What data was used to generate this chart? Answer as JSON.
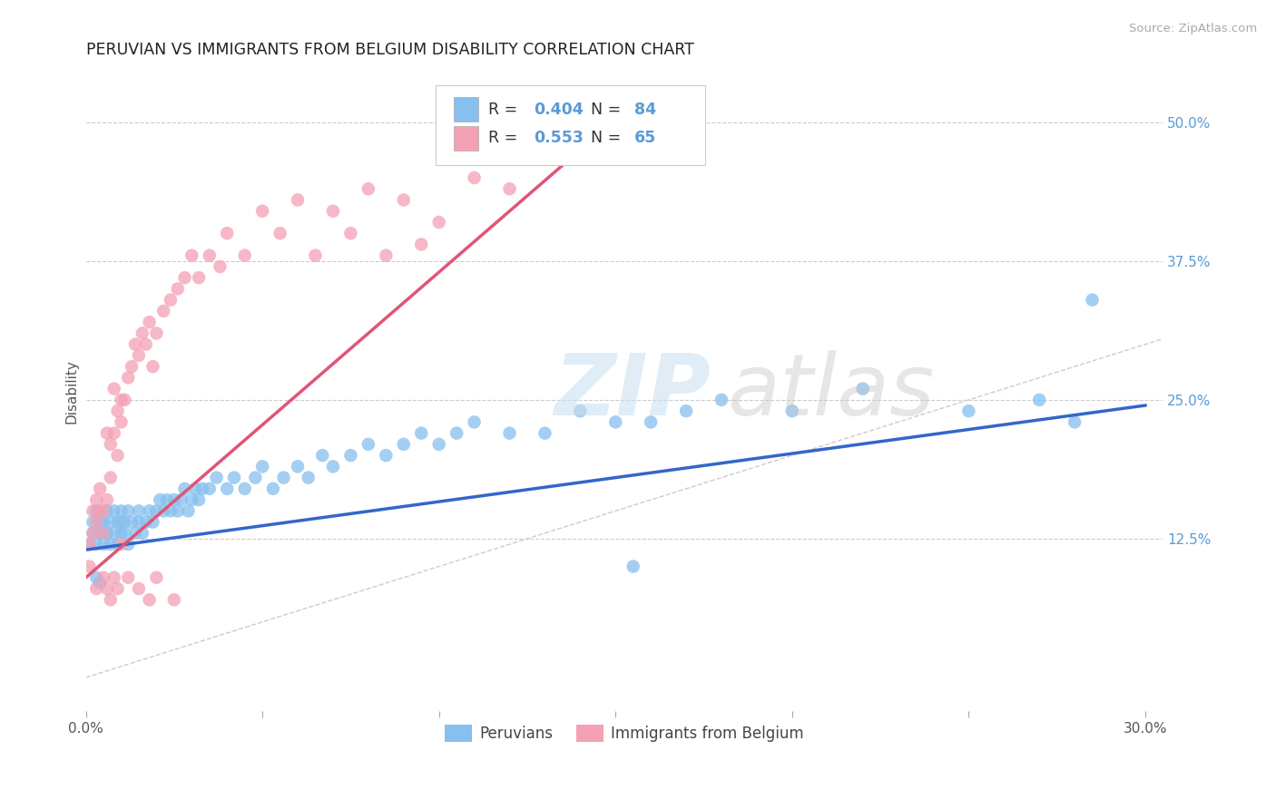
{
  "title": "PERUVIAN VS IMMIGRANTS FROM BELGIUM DISABILITY CORRELATION CHART",
  "source": "Source: ZipAtlas.com",
  "ylabel": "Disability",
  "xlim": [
    0.0,
    0.305
  ],
  "ylim": [
    -0.03,
    0.545
  ],
  "grid_color": "#cccccc",
  "background_color": "#ffffff",
  "peruvians_color": "#87BFEE",
  "belgium_color": "#F4A0B5",
  "peruvians_R": 0.404,
  "peruvians_N": 84,
  "belgium_R": 0.553,
  "belgium_N": 65,
  "peruvians_line_color": "#3366CC",
  "belgium_line_color": "#E05575",
  "diagonal_color": "#cccccc",
  "legend_label_peruvians": "Peruvians",
  "legend_label_belgium": "Immigrants from Belgium",
  "ytick_positions": [
    0.5,
    0.375,
    0.25,
    0.125
  ],
  "ytick_labels": [
    "50.0%",
    "37.5%",
    "25.0%",
    "12.5%"
  ],
  "ytick_color": "#5b9bd5",
  "peruvians_x": [
    0.001,
    0.002,
    0.002,
    0.003,
    0.003,
    0.004,
    0.004,
    0.005,
    0.005,
    0.005,
    0.006,
    0.006,
    0.007,
    0.007,
    0.008,
    0.008,
    0.009,
    0.009,
    0.01,
    0.01,
    0.01,
    0.011,
    0.011,
    0.012,
    0.012,
    0.013,
    0.014,
    0.015,
    0.015,
    0.016,
    0.017,
    0.018,
    0.019,
    0.02,
    0.021,
    0.022,
    0.023,
    0.024,
    0.025,
    0.026,
    0.027,
    0.028,
    0.029,
    0.03,
    0.031,
    0.032,
    0.033,
    0.035,
    0.037,
    0.04,
    0.042,
    0.045,
    0.048,
    0.05,
    0.053,
    0.056,
    0.06,
    0.063,
    0.067,
    0.07,
    0.075,
    0.08,
    0.085,
    0.09,
    0.095,
    0.1,
    0.105,
    0.11,
    0.12,
    0.13,
    0.14,
    0.15,
    0.16,
    0.17,
    0.18,
    0.2,
    0.22,
    0.25,
    0.27,
    0.28,
    0.003,
    0.004,
    0.155,
    0.285
  ],
  "peruvians_y": [
    0.12,
    0.13,
    0.14,
    0.12,
    0.15,
    0.13,
    0.14,
    0.12,
    0.13,
    0.14,
    0.13,
    0.15,
    0.12,
    0.14,
    0.13,
    0.15,
    0.12,
    0.14,
    0.13,
    0.14,
    0.15,
    0.13,
    0.14,
    0.12,
    0.15,
    0.14,
    0.13,
    0.14,
    0.15,
    0.13,
    0.14,
    0.15,
    0.14,
    0.15,
    0.16,
    0.15,
    0.16,
    0.15,
    0.16,
    0.15,
    0.16,
    0.17,
    0.15,
    0.16,
    0.17,
    0.16,
    0.17,
    0.17,
    0.18,
    0.17,
    0.18,
    0.17,
    0.18,
    0.19,
    0.17,
    0.18,
    0.19,
    0.18,
    0.2,
    0.19,
    0.2,
    0.21,
    0.2,
    0.21,
    0.22,
    0.21,
    0.22,
    0.23,
    0.22,
    0.22,
    0.24,
    0.23,
    0.23,
    0.24,
    0.25,
    0.24,
    0.26,
    0.24,
    0.25,
    0.23,
    0.09,
    0.085,
    0.1,
    0.34
  ],
  "belgium_x": [
    0.001,
    0.001,
    0.002,
    0.002,
    0.003,
    0.003,
    0.004,
    0.004,
    0.005,
    0.005,
    0.006,
    0.006,
    0.007,
    0.007,
    0.008,
    0.008,
    0.009,
    0.009,
    0.01,
    0.01,
    0.011,
    0.012,
    0.013,
    0.014,
    0.015,
    0.016,
    0.017,
    0.018,
    0.019,
    0.02,
    0.022,
    0.024,
    0.026,
    0.028,
    0.03,
    0.032,
    0.035,
    0.038,
    0.04,
    0.045,
    0.05,
    0.055,
    0.06,
    0.065,
    0.07,
    0.075,
    0.08,
    0.085,
    0.09,
    0.095,
    0.1,
    0.11,
    0.12,
    0.003,
    0.005,
    0.006,
    0.007,
    0.008,
    0.009,
    0.01,
    0.012,
    0.015,
    0.018,
    0.02,
    0.025
  ],
  "belgium_y": [
    0.1,
    0.12,
    0.13,
    0.15,
    0.14,
    0.16,
    0.15,
    0.17,
    0.13,
    0.15,
    0.16,
    0.22,
    0.21,
    0.18,
    0.22,
    0.26,
    0.2,
    0.24,
    0.23,
    0.25,
    0.25,
    0.27,
    0.28,
    0.3,
    0.29,
    0.31,
    0.3,
    0.32,
    0.28,
    0.31,
    0.33,
    0.34,
    0.35,
    0.36,
    0.38,
    0.36,
    0.38,
    0.37,
    0.4,
    0.38,
    0.42,
    0.4,
    0.43,
    0.38,
    0.42,
    0.4,
    0.44,
    0.38,
    0.43,
    0.39,
    0.41,
    0.45,
    0.44,
    0.08,
    0.09,
    0.08,
    0.07,
    0.09,
    0.08,
    0.12,
    0.09,
    0.08,
    0.07,
    0.09,
    0.07
  ],
  "peruvians_line_x": [
    0.0,
    0.3
  ],
  "peruvians_line_y": [
    0.115,
    0.245
  ],
  "belgium_line_x": [
    0.0,
    0.14
  ],
  "belgium_line_y": [
    0.09,
    0.475
  ]
}
